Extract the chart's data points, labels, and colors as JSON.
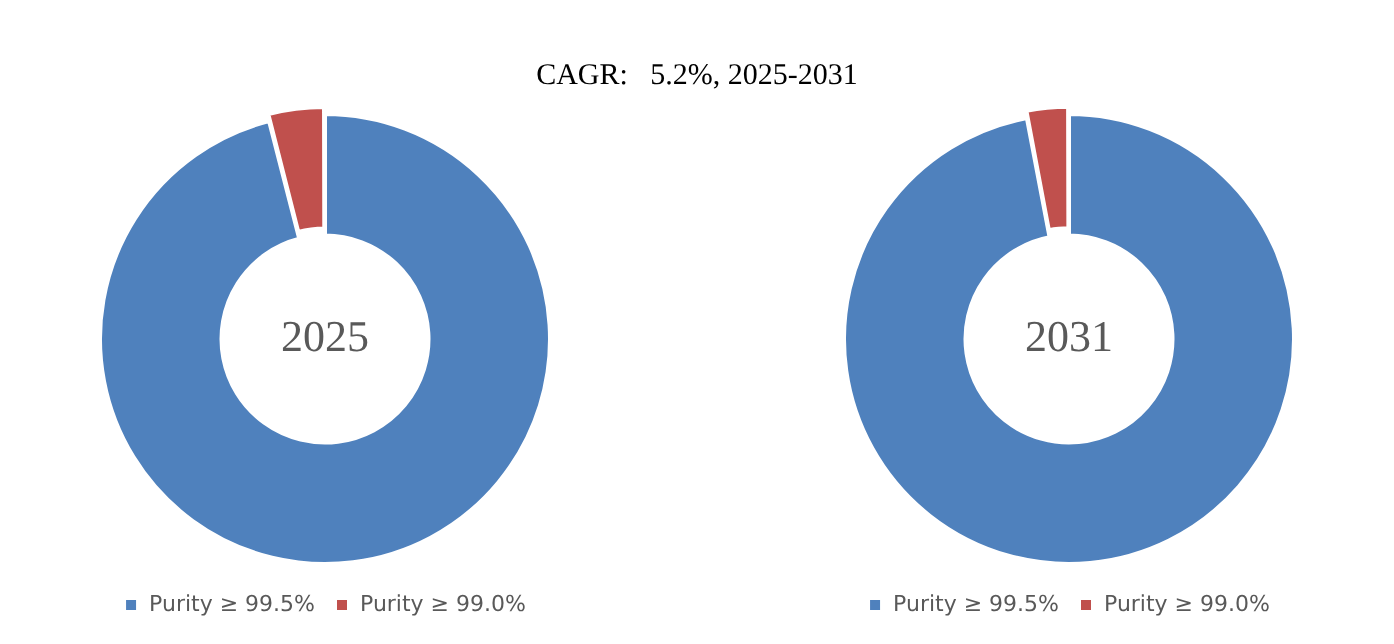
{
  "chart_data": [
    {
      "type": "donut",
      "title": "CAGR:   5.2%, 2025-2031",
      "categories": [
        "Purity ≥ 99.5%",
        "Purity ≥ 99.0%"
      ],
      "values": [
        96,
        4
      ],
      "colors": [
        "#4f81bd",
        "#c0504d"
      ],
      "annotations": [
        "2025"
      ],
      "legend": "bottom"
    },
    {
      "type": "donut",
      "categories": [
        "Purity ≥ 99.5%",
        "Purity ≥ 99.0%"
      ],
      "values": [
        97,
        3
      ],
      "colors": [
        "#4f81bd",
        "#c0504d"
      ],
      "annotations": [
        "2031"
      ],
      "legend": "bottom"
    }
  ]
}
